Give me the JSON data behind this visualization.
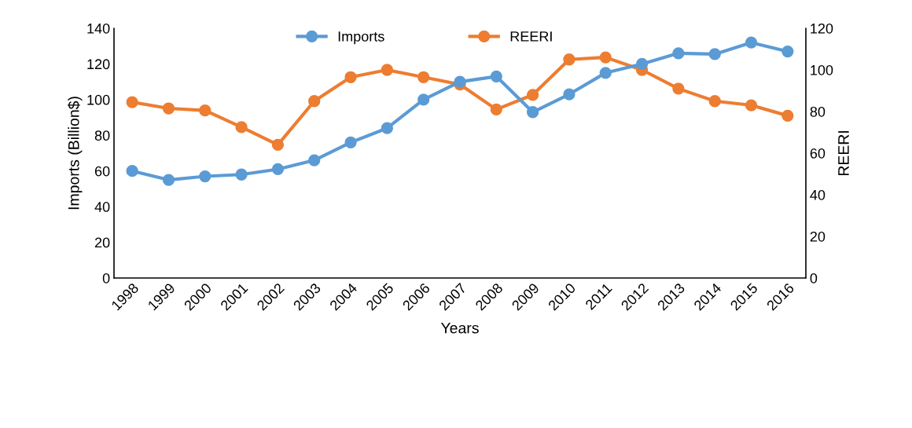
{
  "chart_data": {
    "type": "line",
    "categories": [
      "1998",
      "1999",
      "2000",
      "2001",
      "2002",
      "2003",
      "2004",
      "2005",
      "2006",
      "2007",
      "2008",
      "2009",
      "2010",
      "2011",
      "2012",
      "2013",
      "2014",
      "2015",
      "2016"
    ],
    "series": [
      {
        "name": "Imports",
        "color": "#5b9bd5",
        "values": [
          60,
          55,
          57,
          58,
          61,
          66,
          76,
          84,
          100,
          110,
          113,
          93,
          103,
          115,
          120,
          126,
          125.5,
          132,
          127
        ]
      },
      {
        "name": "REERI",
        "color": "#ed7d31",
        "axis": "y2",
        "values": [
          84.5,
          81.5,
          80.5,
          72.5,
          64,
          85,
          96.5,
          100,
          96.5,
          93,
          81,
          88,
          105,
          106,
          100,
          91,
          85,
          83,
          78
        ]
      }
    ],
    "xlabel": "Years",
    "ylabel": "Imports (Billion$)",
    "y2label": "REERI",
    "ylim": [
      0,
      140
    ],
    "yticks": [
      0,
      20,
      40,
      60,
      80,
      100,
      120,
      140
    ],
    "y2lim": [
      0,
      120
    ],
    "y2ticks": [
      0,
      20,
      40,
      60,
      80,
      100,
      120
    ],
    "legend": "top",
    "grid": false,
    "marker": "circle",
    "line_style": "solid"
  }
}
